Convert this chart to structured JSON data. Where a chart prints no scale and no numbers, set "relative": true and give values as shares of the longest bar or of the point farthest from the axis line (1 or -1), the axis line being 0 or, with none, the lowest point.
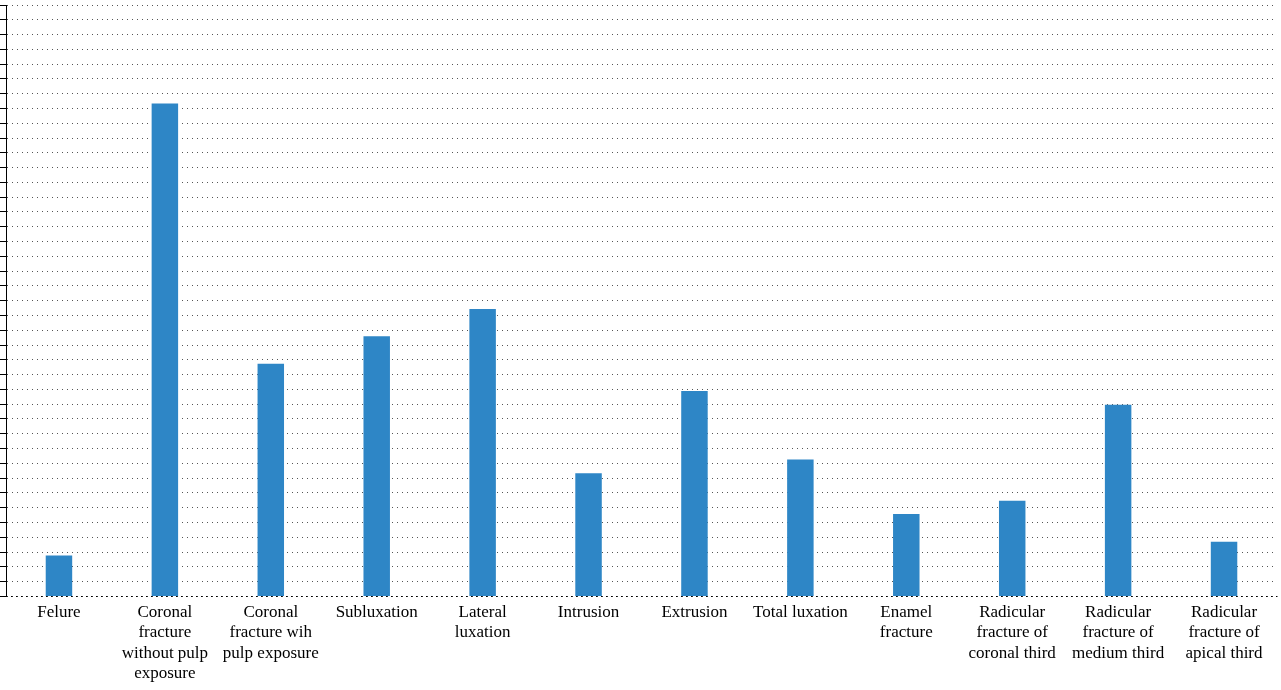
{
  "chart_data": {
    "type": "bar",
    "relative": true,
    "grid": "y",
    "categories": [
      "Felure",
      "Coronal fracture without pulp exposure",
      "Coronal fracture wih pulp exposure",
      "Subluxation",
      "Lateral luxation",
      "Intrusion",
      "Extrusion",
      "Total luxation",
      "Enamel fracture",
      "Radicular fracture of coronal third",
      "Radicular fracture of medium third",
      "Radicular fracture of apical third"
    ],
    "values": [
      0.083,
      1,
      0.472,
      0.528,
      0.583,
      0.25,
      0.417,
      0.278,
      0.167,
      0.194,
      0.389,
      0.111
    ],
    "color": "#2e86c6"
  }
}
